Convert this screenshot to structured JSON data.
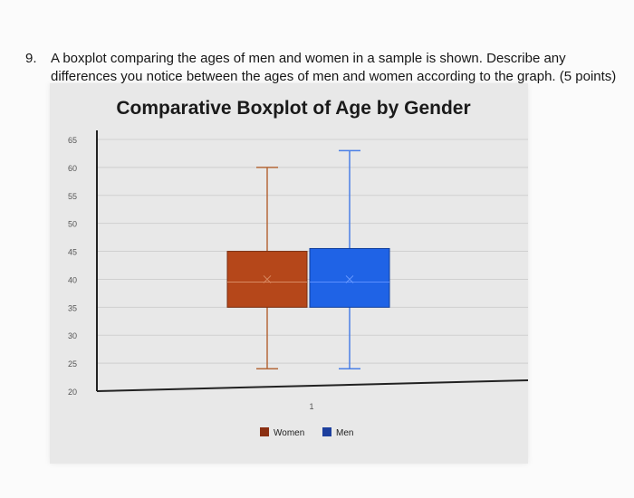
{
  "question": {
    "number": "9.",
    "line1": "A boxplot comparing the ages of men and women in a sample is shown. Describe any",
    "line2": "differences you notice between the ages of men and women according to the graph. (5 points)"
  },
  "chart_data": {
    "type": "boxplot",
    "title": "Comparative Boxplot of Age by Gender",
    "xlabel": "",
    "ylabel": "",
    "ylim": [
      20,
      65
    ],
    "yticks": [
      65,
      60,
      55,
      50,
      45,
      40,
      35,
      30,
      25,
      20
    ],
    "categories": [
      "1"
    ],
    "grid": true,
    "legend": "bottom",
    "series": [
      {
        "name": "Women",
        "color": "#b5471a",
        "min": 24,
        "q1": 35,
        "median": 39.5,
        "q3": 45,
        "max": 60,
        "mean": 40
      },
      {
        "name": "Men",
        "color": "#1f63e6",
        "min": 24,
        "q1": 35,
        "median": 39.5,
        "q3": 45.5,
        "max": 63,
        "mean": 40
      }
    ]
  }
}
